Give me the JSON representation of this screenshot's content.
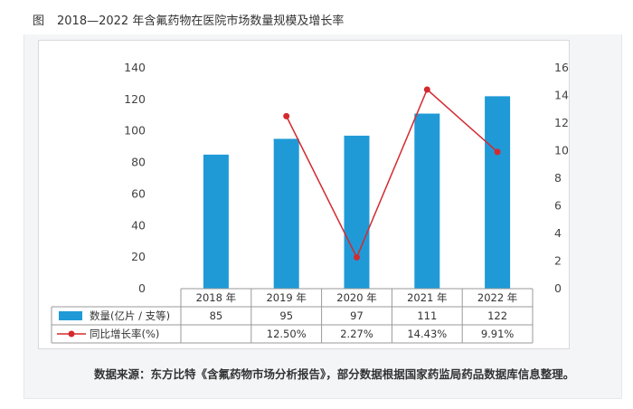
{
  "figure": {
    "label": "图",
    "title": "2018—2022 年含氟药物在医院市场数量规模及增长率"
  },
  "source_note": "数据来源：东方比特《含氟药物市场分析报告》，部分数据根据国家药监局药品数据库信息整理。",
  "colors": {
    "bar": "#1f9ad7",
    "line": "#d42a2f",
    "grid_border": "#999999",
    "panel_bg": "#f4f5f7"
  },
  "chart_data": {
    "type": "bar",
    "categories": [
      "2018 年",
      "2019 年",
      "2020 年",
      "2021 年",
      "2022 年"
    ],
    "series": [
      {
        "name": "数量(亿片 / 支等)",
        "type": "bar",
        "axis": "left",
        "values": [
          85,
          95,
          97,
          111,
          122
        ]
      },
      {
        "name": "同比增长率(%)",
        "type": "line",
        "axis": "right",
        "values": [
          null,
          12.5,
          2.27,
          14.43,
          9.91
        ]
      }
    ],
    "y_left": {
      "ticks": [
        "0",
        "20",
        "40",
        "60",
        "80",
        "100",
        "120",
        "140"
      ],
      "ylim": [
        0,
        140
      ]
    },
    "y_right": {
      "ticks": [
        "0",
        "2",
        "4",
        "6",
        "8",
        "10",
        "12",
        "14",
        "16"
      ],
      "ylim": [
        0,
        16
      ]
    },
    "table": {
      "rows": [
        {
          "legend": "数量(亿片 / 支等)",
          "cells": [
            "85",
            "95",
            "97",
            "111",
            "122"
          ]
        },
        {
          "legend": "同比增长率(%)",
          "cells": [
            "",
            "12.50%",
            "2.27%",
            "14.43%",
            "9.91%"
          ]
        }
      ]
    },
    "grid": false,
    "legend_position": "table-left"
  }
}
